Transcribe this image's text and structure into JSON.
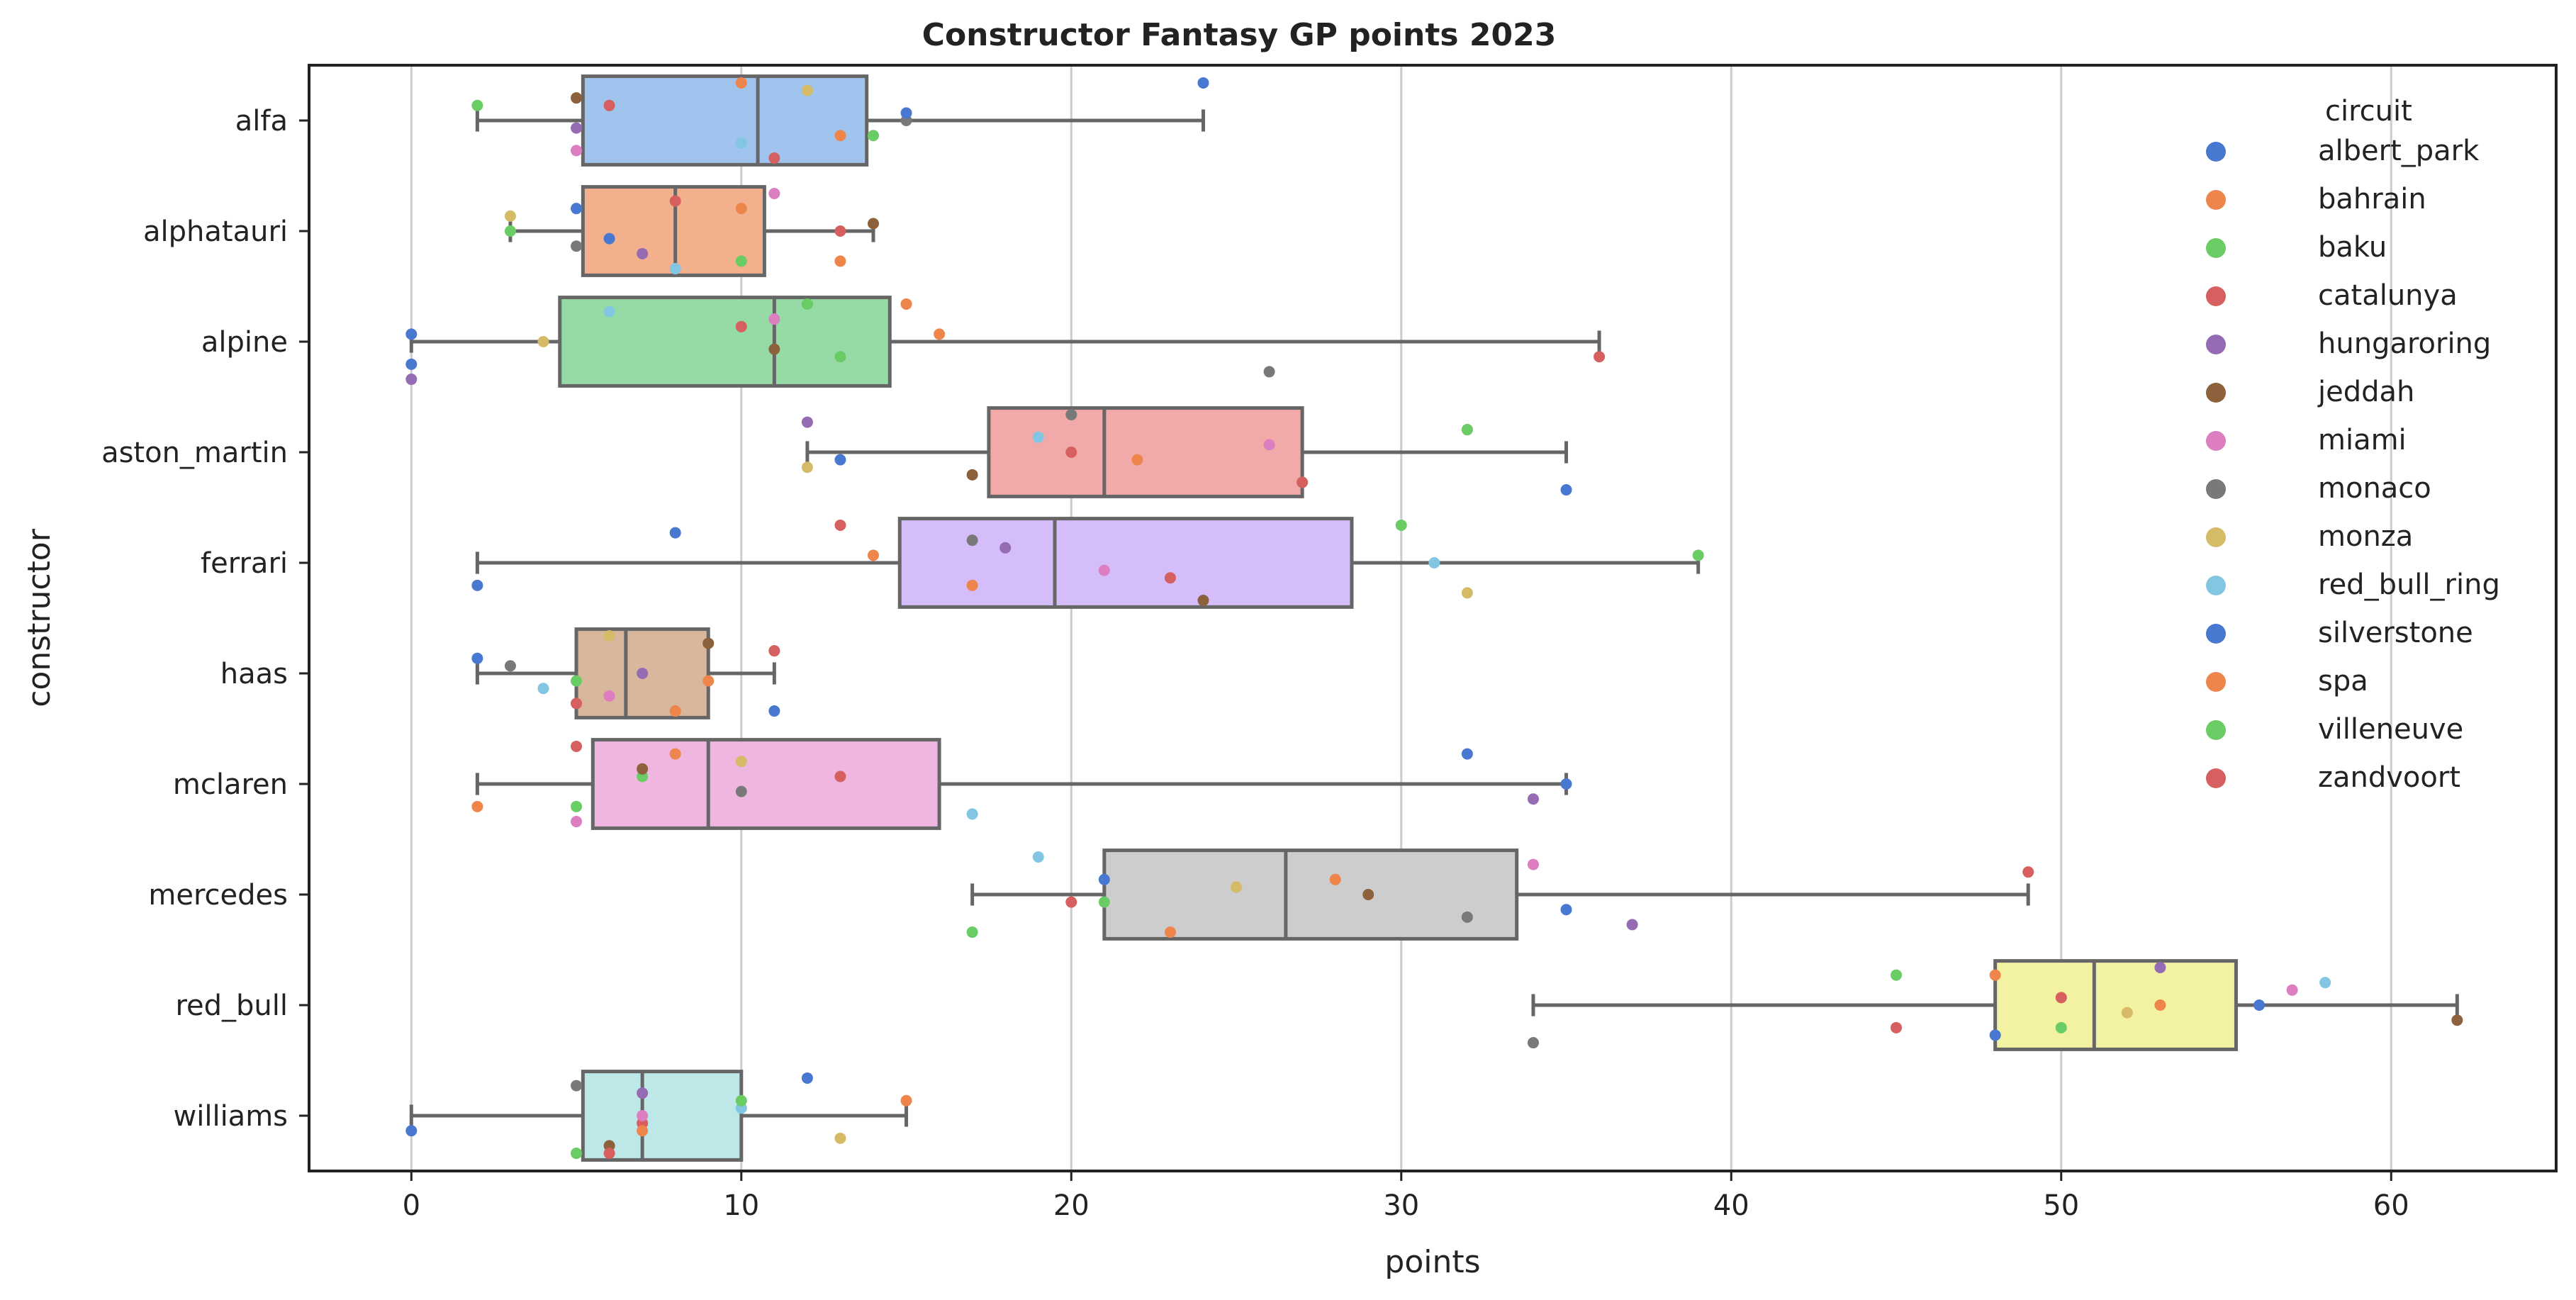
{
  "chart_data": {
    "type": "box",
    "title": "Constructor Fantasy GP points 2023",
    "xlabel": "points",
    "ylabel": "constructor",
    "xlim": [
      -3.1,
      65
    ],
    "xticks": [
      0,
      10,
      20,
      30,
      40,
      50,
      60
    ],
    "grid": "vertical",
    "legend_title": "circuit",
    "legend_position": "top-right",
    "categories": [
      "alfa",
      "alphatauri",
      "alpine",
      "aston_martin",
      "ferrari",
      "haas",
      "mclaren",
      "mercedes",
      "red_bull",
      "williams"
    ],
    "category_colors": [
      "#a1c4ee",
      "#f3b08d",
      "#96dba6",
      "#f2a9a9",
      "#d4bdf8",
      "#d8b79d",
      "#efb6e0",
      "#cdcdcd",
      "#f3f1a2",
      "#bde8e7"
    ],
    "box_stats": [
      {
        "whisker_low": 2,
        "q1": 5.2,
        "median": 10.5,
        "q3": 13.8,
        "whisker_high": 24
      },
      {
        "whisker_low": 3,
        "q1": 5.2,
        "median": 8,
        "q3": 10.7,
        "whisker_high": 14
      },
      {
        "whisker_low": 0,
        "q1": 4.5,
        "median": 11,
        "q3": 14.5,
        "whisker_high": 36
      },
      {
        "whisker_low": 12,
        "q1": 17.5,
        "median": 21,
        "q3": 27,
        "whisker_high": 35
      },
      {
        "whisker_low": 2,
        "q1": 14.8,
        "median": 19.5,
        "q3": 28.5,
        "whisker_high": 39
      },
      {
        "whisker_low": 2,
        "q1": 5,
        "median": 6.5,
        "q3": 9,
        "whisker_high": 11
      },
      {
        "whisker_low": 2,
        "q1": 5.5,
        "median": 9,
        "q3": 16,
        "whisker_high": 35
      },
      {
        "whisker_low": 17,
        "q1": 21,
        "median": 26.5,
        "q3": 33.5,
        "whisker_high": 49
      },
      {
        "whisker_low": 34,
        "q1": 48,
        "median": 51,
        "q3": 55.3,
        "whisker_high": 62
      },
      {
        "whisker_low": 0,
        "q1": 5.2,
        "median": 7,
        "q3": 10,
        "whisker_high": 15
      }
    ],
    "series": [
      {
        "name": "albert_park",
        "color": "#4878d0",
        "points": [
          [
            24,
            0
          ],
          [
            5,
            1
          ],
          [
            0,
            2
          ],
          [
            13,
            3
          ],
          [
            2,
            4
          ],
          [
            11,
            5
          ],
          [
            32,
            6
          ],
          [
            21,
            7
          ],
          [
            56,
            8
          ],
          [
            0,
            9
          ]
        ]
      },
      {
        "name": "bahrain",
        "color": "#ee854a",
        "points": [
          [
            13,
            0
          ],
          [
            13,
            1
          ],
          [
            15,
            2
          ],
          [
            32,
            3
          ],
          [
            14,
            4
          ],
          [
            9,
            5
          ],
          [
            2,
            6
          ],
          [
            23,
            7
          ],
          [
            48,
            8
          ],
          [
            15,
            9
          ]
        ]
      },
      {
        "name": "baku",
        "color": "#6acc64",
        "points": [
          [
            2,
            0
          ],
          [
            3,
            1
          ],
          [
            13,
            2
          ],
          [
            27,
            3
          ],
          [
            30,
            4
          ],
          [
            11,
            5
          ],
          [
            7,
            6
          ],
          [
            21,
            7
          ],
          [
            50,
            8
          ],
          [
            5,
            9
          ]
        ]
      },
      {
        "name": "catalunya",
        "color": "#d65f5f",
        "points": [
          [
            11,
            0
          ],
          [
            8,
            1
          ],
          [
            10,
            2
          ],
          [
            20,
            3
          ],
          [
            23,
            4
          ],
          [
            5,
            5
          ],
          [
            5,
            6
          ],
          [
            49,
            7
          ],
          [
            50,
            8
          ],
          [
            7,
            9
          ]
        ]
      },
      {
        "name": "hungaroring",
        "color": "#956cb4",
        "points": [
          [
            5,
            0
          ],
          [
            7,
            1
          ],
          [
            0,
            2
          ],
          [
            12,
            3
          ],
          [
            18,
            4
          ],
          [
            7,
            5
          ],
          [
            34,
            6
          ],
          [
            37,
            7
          ],
          [
            53,
            8
          ],
          [
            7,
            9
          ]
        ]
      },
      {
        "name": "jeddah",
        "color": "#8c613c",
        "points": [
          [
            5,
            0
          ],
          [
            14,
            1
          ],
          [
            11,
            2
          ],
          [
            17,
            3
          ],
          [
            24,
            4
          ],
          [
            9,
            5
          ],
          [
            7,
            6
          ],
          [
            29,
            7
          ],
          [
            62,
            8
          ],
          [
            6,
            9
          ]
        ]
      },
      {
        "name": "miami",
        "color": "#dc7ec0",
        "points": [
          [
            5,
            0
          ],
          [
            11,
            1
          ],
          [
            11,
            2
          ],
          [
            26,
            3
          ],
          [
            21,
            4
          ],
          [
            6,
            5
          ],
          [
            5,
            6
          ],
          [
            34,
            7
          ],
          [
            57,
            8
          ],
          [
            7,
            9
          ]
        ]
      },
      {
        "name": "monaco",
        "color": "#797979",
        "points": [
          [
            15,
            0
          ],
          [
            5,
            1
          ],
          [
            26,
            2
          ],
          [
            20,
            3
          ],
          [
            17,
            4
          ],
          [
            3,
            5
          ],
          [
            10,
            6
          ],
          [
            32,
            7
          ],
          [
            34,
            8
          ],
          [
            5,
            9
          ]
        ]
      },
      {
        "name": "monza",
        "color": "#d5bb67",
        "points": [
          [
            12,
            0
          ],
          [
            3,
            1
          ],
          [
            4,
            2
          ],
          [
            12,
            3
          ],
          [
            32,
            4
          ],
          [
            6,
            5
          ],
          [
            10,
            6
          ],
          [
            25,
            7
          ],
          [
            52,
            8
          ],
          [
            13,
            9
          ]
        ]
      },
      {
        "name": "red_bull_ring",
        "color": "#82c6e2",
        "points": [
          [
            10,
            0
          ],
          [
            8,
            1
          ],
          [
            6,
            2
          ],
          [
            19,
            3
          ],
          [
            31,
            4
          ],
          [
            4,
            5
          ],
          [
            17,
            6
          ],
          [
            19,
            7
          ],
          [
            58,
            8
          ],
          [
            10,
            9
          ]
        ]
      },
      {
        "name": "silverstone",
        "color": "#4878d0",
        "points": [
          [
            15,
            0
          ],
          [
            6,
            1
          ],
          [
            0,
            2
          ],
          [
            35,
            3
          ],
          [
            8,
            4
          ],
          [
            2,
            5
          ],
          [
            35,
            6
          ],
          [
            35,
            7
          ],
          [
            48,
            8
          ],
          [
            12,
            9
          ]
        ]
      },
      {
        "name": "spa",
        "color": "#ee854a",
        "points": [
          [
            10,
            0
          ],
          [
            10,
            1
          ],
          [
            16,
            2
          ],
          [
            22,
            3
          ],
          [
            17,
            4
          ],
          [
            8,
            5
          ],
          [
            8,
            6
          ],
          [
            28,
            7
          ],
          [
            53,
            8
          ],
          [
            7,
            9
          ]
        ]
      },
      {
        "name": "villeneuve",
        "color": "#6acc64",
        "points": [
          [
            14,
            0
          ],
          [
            10,
            1
          ],
          [
            12,
            2
          ],
          [
            32,
            3
          ],
          [
            39,
            4
          ],
          [
            5,
            5
          ],
          [
            5,
            6
          ],
          [
            17,
            7
          ],
          [
            45,
            8
          ],
          [
            10,
            9
          ]
        ]
      },
      {
        "name": "zandvoort",
        "color": "#d65f5f",
        "points": [
          [
            6,
            0
          ],
          [
            13,
            1
          ],
          [
            36,
            2
          ],
          [
            27,
            3
          ],
          [
            13,
            4
          ],
          [
            11,
            5
          ],
          [
            13,
            6
          ],
          [
            20,
            7
          ],
          [
            45,
            8
          ],
          [
            6,
            9
          ]
        ]
      }
    ]
  }
}
